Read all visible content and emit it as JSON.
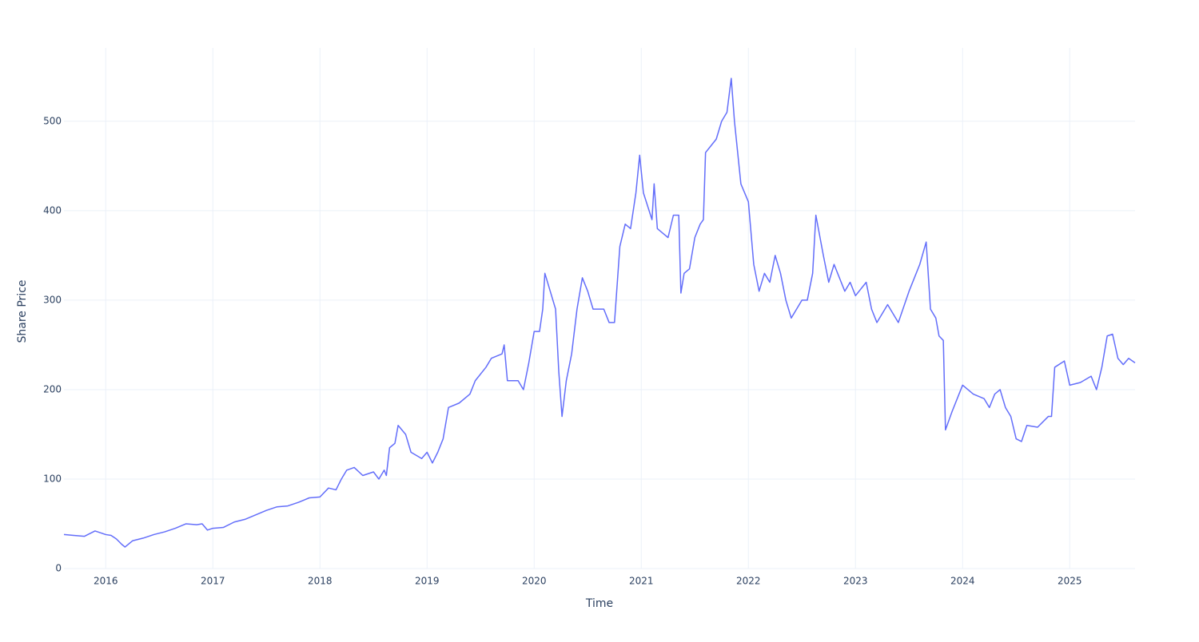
{
  "chart_data": {
    "type": "line",
    "x_label": "Time",
    "y_label": "Share Price",
    "x": [
      2015.61,
      2015.7,
      2015.8,
      2015.9,
      2016.0,
      2016.05,
      2016.1,
      2016.15,
      2016.18,
      2016.25,
      2016.35,
      2016.45,
      2016.55,
      2016.65,
      2016.75,
      2016.85,
      2016.9,
      2016.95,
      2017.0,
      2017.1,
      2017.2,
      2017.3,
      2017.4,
      2017.5,
      2017.6,
      2017.7,
      2017.8,
      2017.9,
      2018.0,
      2018.08,
      2018.15,
      2018.2,
      2018.25,
      2018.32,
      2018.4,
      2018.5,
      2018.55,
      2018.6,
      2018.62,
      2018.65,
      2018.7,
      2018.73,
      2018.8,
      2018.85,
      2018.95,
      2019.0,
      2019.05,
      2019.1,
      2019.15,
      2019.2,
      2019.3,
      2019.4,
      2019.45,
      2019.55,
      2019.6,
      2019.7,
      2019.72,
      2019.75,
      2019.85,
      2019.9,
      2019.95,
      2020.0,
      2020.05,
      2020.08,
      2020.1,
      2020.15,
      2020.2,
      2020.23,
      2020.26,
      2020.3,
      2020.35,
      2020.4,
      2020.45,
      2020.5,
      2020.55,
      2020.65,
      2020.7,
      2020.75,
      2020.8,
      2020.85,
      2020.9,
      2020.95,
      2020.985,
      2021.02,
      2021.1,
      2021.12,
      2021.15,
      2021.2,
      2021.25,
      2021.3,
      2021.35,
      2021.37,
      2021.4,
      2021.45,
      2021.5,
      2021.55,
      2021.58,
      2021.6,
      2021.7,
      2021.75,
      2021.8,
      2021.84,
      2021.87,
      2021.93,
      2022.0,
      2022.05,
      2022.1,
      2022.15,
      2022.2,
      2022.25,
      2022.3,
      2022.35,
      2022.4,
      2022.45,
      2022.5,
      2022.55,
      2022.6,
      2022.63,
      2022.7,
      2022.75,
      2022.8,
      2022.9,
      2022.95,
      2023.0,
      2023.1,
      2023.15,
      2023.2,
      2023.3,
      2023.4,
      2023.5,
      2023.6,
      2023.66,
      2023.7,
      2023.75,
      2023.78,
      2023.82,
      2023.84,
      2023.9,
      2024.0,
      2024.1,
      2024.2,
      2024.25,
      2024.3,
      2024.35,
      2024.4,
      2024.45,
      2024.5,
      2024.55,
      2024.6,
      2024.7,
      2024.8,
      2024.83,
      2024.86,
      2024.95,
      2025.0,
      2025.1,
      2025.2,
      2025.25,
      2025.3,
      2025.35,
      2025.4,
      2025.45,
      2025.5,
      2025.55,
      2025.61
    ],
    "series": [
      {
        "color": "#636efa",
        "values": [
          38,
          37,
          36,
          42,
          38,
          37,
          33,
          27,
          24,
          31,
          34,
          38,
          41,
          45,
          50,
          49,
          50,
          43,
          45,
          46,
          52,
          55,
          60,
          65,
          69,
          70,
          74,
          79,
          80,
          90,
          88,
          100,
          110,
          113,
          104,
          108,
          100,
          110,
          104,
          135,
          140,
          160,
          150,
          130,
          123,
          130,
          118,
          130,
          145,
          180,
          185,
          195,
          210,
          225,
          235,
          240,
          250,
          210,
          210,
          200,
          230,
          265,
          265,
          290,
          330,
          310,
          290,
          220,
          170,
          210,
          240,
          290,
          325,
          310,
          290,
          290,
          275,
          275,
          360,
          385,
          380,
          420,
          462,
          420,
          390,
          430,
          380,
          375,
          370,
          395,
          395,
          308,
          330,
          335,
          370,
          385,
          390,
          465,
          480,
          500,
          510,
          548,
          500,
          430,
          410,
          340,
          310,
          330,
          320,
          350,
          330,
          300,
          280,
          290,
          300,
          300,
          330,
          395,
          350,
          320,
          340,
          310,
          320,
          305,
          320,
          290,
          275,
          295,
          275,
          310,
          340,
          365,
          290,
          280,
          260,
          255,
          155,
          175,
          205,
          195,
          190,
          180,
          195,
          200,
          180,
          170,
          145,
          142,
          160,
          158,
          170,
          170,
          225,
          232,
          205,
          208,
          215,
          200,
          225,
          260,
          262,
          235,
          228,
          235,
          230
        ]
      }
    ],
    "xlim": [
      2015.61,
      2025.61
    ],
    "xticks": [
      2016,
      2017,
      2018,
      2019,
      2020,
      2021,
      2022,
      2023,
      2024,
      2025
    ],
    "ylim": [
      0,
      582
    ],
    "yticks": [
      0,
      100,
      200,
      300,
      400,
      500
    ],
    "grid": true
  }
}
